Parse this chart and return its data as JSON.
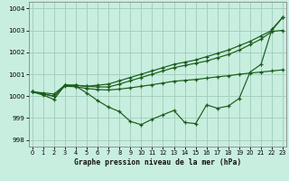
{
  "title": "Graphe pression niveau de la mer (hPa)",
  "bg_color": "#c8eee0",
  "grid_color": "#a0ccb8",
  "line_color": "#1a5c1a",
  "ylim": [
    997.7,
    1004.3
  ],
  "yticks": [
    998,
    999,
    1000,
    1001,
    1002,
    1003,
    1004
  ],
  "xlim": [
    -0.3,
    23.3
  ],
  "xticks": [
    0,
    1,
    2,
    3,
    4,
    5,
    6,
    7,
    8,
    9,
    10,
    11,
    12,
    13,
    14,
    15,
    16,
    17,
    18,
    19,
    20,
    21,
    22,
    23
  ],
  "line_steep": [
    1000.2,
    1000.1,
    1000.0,
    1000.5,
    1000.5,
    1000.45,
    1000.5,
    1000.55,
    1000.7,
    1000.85,
    1001.0,
    1001.15,
    1001.3,
    1001.45,
    1001.55,
    1001.65,
    1001.8,
    1001.95,
    1002.1,
    1002.3,
    1002.5,
    1002.75,
    1003.0,
    1003.6
  ],
  "line_mid": [
    1000.2,
    1000.1,
    1000.0,
    1000.45,
    1000.43,
    1000.35,
    1000.3,
    1000.28,
    1000.32,
    1000.38,
    1000.45,
    1000.52,
    1000.6,
    1000.68,
    1000.72,
    1000.76,
    1000.82,
    1000.88,
    1000.93,
    1001.0,
    1001.05,
    1001.1,
    1001.15,
    1001.2
  ],
  "line_upper": [
    1000.2,
    1000.15,
    1000.1,
    1000.5,
    1000.5,
    1000.45,
    1000.42,
    1000.42,
    1000.55,
    1000.7,
    1000.85,
    1001.0,
    1001.15,
    1001.3,
    1001.4,
    1001.5,
    1001.6,
    1001.75,
    1001.9,
    1002.1,
    1002.35,
    1002.6,
    1002.95,
    1003.0
  ],
  "line_wavy": [
    1000.2,
    1000.05,
    999.85,
    1000.5,
    1000.45,
    1000.15,
    999.8,
    999.5,
    999.3,
    998.85,
    998.7,
    998.95,
    999.15,
    999.35,
    998.8,
    998.75,
    999.6,
    999.45,
    999.55,
    999.9,
    1001.1,
    1001.45,
    1003.05,
    1003.6
  ]
}
